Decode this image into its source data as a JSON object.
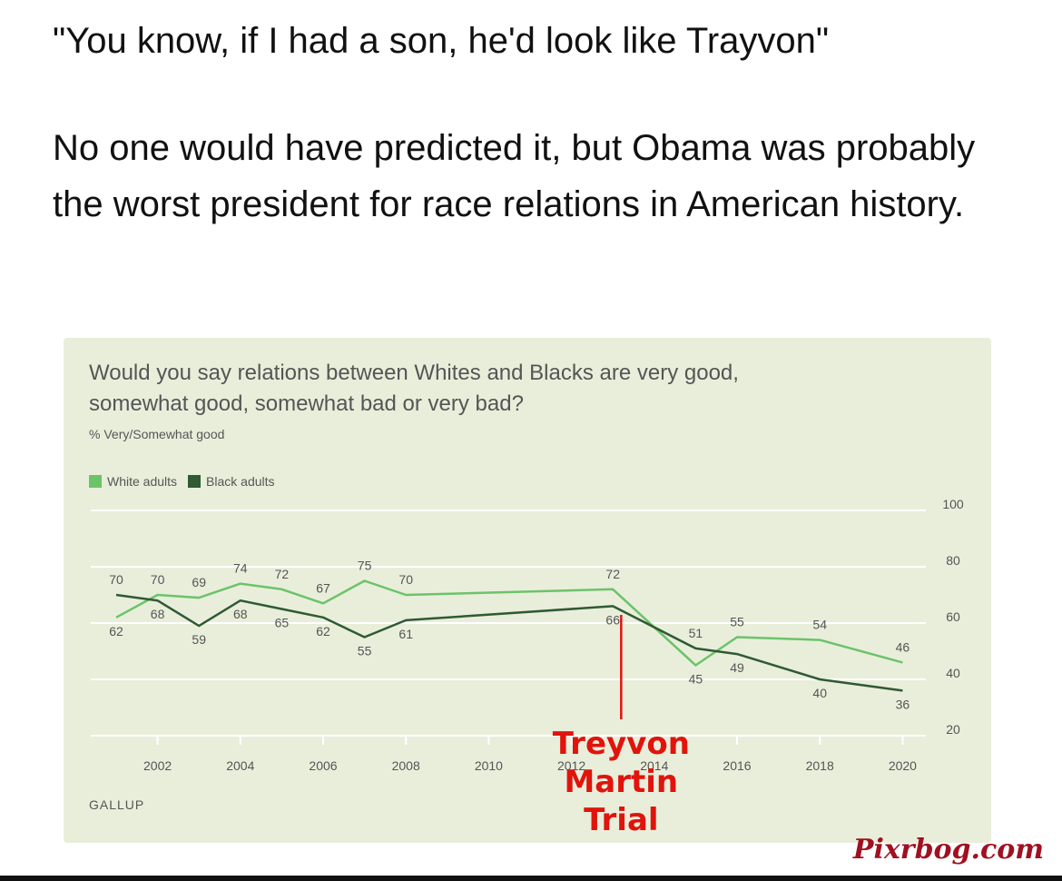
{
  "post": {
    "quote": "\"You know, if I had a son, he'd look like Trayvon\"",
    "comment": "No one would have predicted it, but Obama was probably the worst president for race relations in American history."
  },
  "chart_data": {
    "type": "line",
    "title": "Would you say relations between Whites and Blacks are very good, somewhat good, somewhat bad or very bad?",
    "subtitle": "% Very/Somewhat good",
    "ylim": [
      20,
      100
    ],
    "y_ticks": [
      20,
      40,
      60,
      80,
      100
    ],
    "x_ticks": [
      2002,
      2004,
      2006,
      2008,
      2010,
      2012,
      2014,
      2016,
      2018,
      2020
    ],
    "grid": true,
    "legend_position": "top-left",
    "series": [
      {
        "name": "White adults",
        "color": "#6cc36a",
        "x": [
          2001,
          2002,
          2003,
          2004,
          2005,
          2006,
          2007,
          2008,
          2013,
          2015,
          2016,
          2018,
          2020
        ],
        "values": [
          62,
          70,
          69,
          74,
          72,
          67,
          75,
          70,
          72,
          45,
          55,
          54,
          46
        ]
      },
      {
        "name": "Black adults",
        "color": "#2f5a33",
        "x": [
          2001,
          2002,
          2003,
          2004,
          2005,
          2006,
          2007,
          2008,
          2013,
          2015,
          2016,
          2018,
          2020
        ],
        "values": [
          70,
          68,
          59,
          68,
          65,
          62,
          55,
          61,
          66,
          51,
          49,
          40,
          36
        ]
      }
    ],
    "annotation": {
      "x": 2013.2,
      "lines": [
        "Treyvon",
        "Martin",
        "Trial"
      ],
      "color": "#e0140c"
    },
    "source": "GALLUP"
  },
  "watermark": "Pixrbog.com"
}
